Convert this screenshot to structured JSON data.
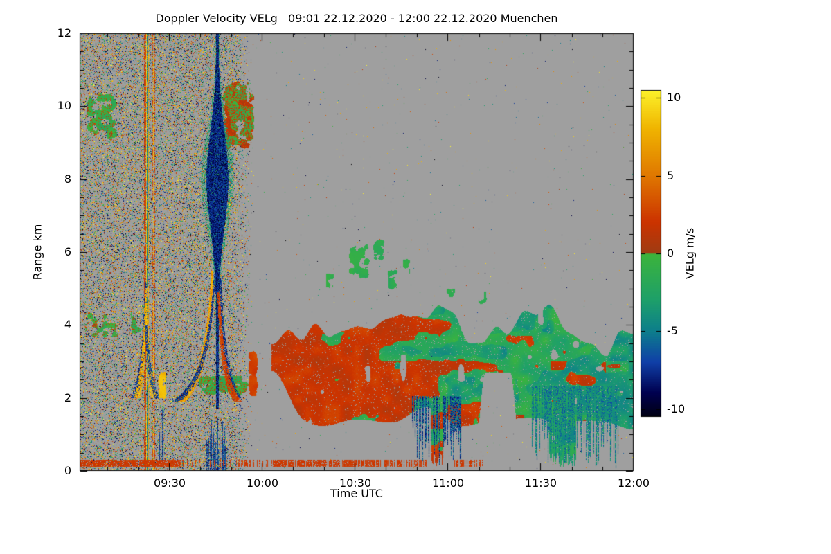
{
  "chart_data": {
    "type": "heatmap",
    "title": "Doppler Velocity VELg   09:01 22.12.2020 - 12:00 22.12.2020 Muenchen",
    "instrument_variable": "Doppler Velocity VELg",
    "time_start": "09:01 22.12.2020",
    "time_end": "12:00 22.12.2020",
    "station": "Muenchen",
    "xlabel": "Time UTC",
    "ylabel": "Range km",
    "x_ticks": [
      "09:30",
      "10:00",
      "10:30",
      "11:00",
      "11:30",
      "12:00"
    ],
    "x_tick_minutes": [
      29,
      59,
      89,
      119,
      149,
      179
    ],
    "x_minor_step_minutes": 10,
    "x_range_minutes": [
      0,
      179
    ],
    "y_ticks": [
      0,
      2,
      4,
      6,
      8,
      10,
      12
    ],
    "y_minor_step": 0.5,
    "y_range": [
      0,
      12
    ],
    "grid": false,
    "no_data_color": "#9f9f9f",
    "colorbar": {
      "label": "VELg m/s",
      "ticks": [
        10,
        5,
        0,
        -5,
        -10
      ],
      "range": [
        -10.5,
        10.5
      ],
      "stops": [
        {
          "v": -11,
          "color": "#000000"
        },
        {
          "v": -9,
          "color": "#00004f"
        },
        {
          "v": -7,
          "color": "#1040a8"
        },
        {
          "v": -5,
          "color": "#0d7f8c"
        },
        {
          "v": -3,
          "color": "#1ea06a"
        },
        {
          "v": -0.05,
          "color": "#3cb43c"
        },
        {
          "v": 0.05,
          "color": "#a03c14"
        },
        {
          "v": 2,
          "color": "#cc3300"
        },
        {
          "v": 5,
          "color": "#e07800"
        },
        {
          "v": 8,
          "color": "#f0b400"
        },
        {
          "v": 11,
          "color": "#ffff33"
        }
      ]
    },
    "features_note": "Procedural description of the velocity field regions visible in the plot; t in minutes after 09:01 UTC, r in km.",
    "features": [
      {
        "type": "speckle",
        "t": [
          0,
          55.5
        ],
        "density": 0.26,
        "fade_from": 49,
        "v": [
          -11,
          11
        ]
      },
      {
        "type": "speckle",
        "t": [
          55.5,
          179
        ],
        "density": 0.0025,
        "v": [
          -11,
          11
        ]
      },
      {
        "type": "blob",
        "t": [
          1,
          13.5
        ],
        "r": [
          8.95,
          10.55
        ],
        "cover": 0.6,
        "v": -1.0,
        "vn": 1.3,
        "warm_mix": 0.15
      },
      {
        "type": "blob",
        "t": [
          0,
          14
        ],
        "r": [
          3.55,
          4.45
        ],
        "cover": 0.5,
        "v": -1.0,
        "vn": 1.2,
        "warm_mix": 0.2
      },
      {
        "type": "blob",
        "t": [
          15.5,
          21.5
        ],
        "r": [
          3.6,
          4.7
        ],
        "cover": 0.45,
        "v": -0.9,
        "vn": 1.1,
        "warm_mix": 0.12
      },
      {
        "type": "blob",
        "t": [
          45.5,
          57
        ],
        "r": [
          8.7,
          10.8
        ],
        "cover": 0.75,
        "v": -0.4,
        "vn": 1.8,
        "warm_mix": 0.4
      },
      {
        "type": "band",
        "t": [
          36.5,
          56
        ],
        "r": [
          2.05,
          2.65
        ],
        "cover": 0.75,
        "v": -1.2,
        "vn": 1.0,
        "warm_mix": 0.2
      },
      {
        "type": "column",
        "tc": 21.4,
        "w": 1.3,
        "density": 0.8
      },
      {
        "type": "column",
        "tc": 23.8,
        "w": 0.7,
        "density": 0.55
      },
      {
        "type": "plume",
        "tc": 44.4,
        "r": [
          1.7,
          12
        ],
        "rc": 8.0,
        "wbase": 0.35,
        "wamp": 3.2,
        "wsig": 3.5,
        "v": -7.8,
        "vn": 1.6
      },
      {
        "type": "curve",
        "tc": 44.4,
        "k": -13.5,
        "r": [
          1.9,
          5.5
        ],
        "rref": 10.5,
        "wbase": 0.22,
        "wamp": 1.3,
        "wdecay": 1.3,
        "v": 7,
        "vn": 2.2,
        "cover": 0.85
      },
      {
        "type": "curve",
        "tc": 44.4,
        "k": -16.5,
        "r": [
          1.9,
          5.5
        ],
        "rref": 6.5,
        "wbase": 0.2,
        "wamp": 1.0,
        "wdecay": 1.2,
        "v": -7.5,
        "vn": 1.5,
        "cover": 0.75
      },
      {
        "type": "curve",
        "tc": 44.4,
        "k": 8.5,
        "r": [
          2.0,
          5.3
        ],
        "rref": 9.5,
        "wbase": 0.22,
        "wamp": 0.9,
        "wdecay": 1.4,
        "v": -7.5,
        "vn": 1.5,
        "cover": 0.75
      },
      {
        "type": "curve",
        "tc": 44.4,
        "k": 8.2,
        "r": [
          1.9,
          4.9
        ],
        "rref": 6.0,
        "wbase": 0.25,
        "wamp": 1.1,
        "wdecay": 1.2,
        "v": 2.4,
        "vn": 1.2,
        "cover": 0.85
      },
      {
        "type": "curve",
        "tc": 21.4,
        "k": -5.6,
        "r": [
          2.0,
          5.2
        ],
        "rref": 5.2,
        "wbase": 0.22,
        "wamp": 0.9,
        "wdecay": 1.3,
        "v": -7.5,
        "vn": 1.5,
        "cover": 0.75
      },
      {
        "type": "curve",
        "tc": 21.4,
        "k": -4.6,
        "r": [
          2.0,
          5.0
        ],
        "rref": 5.0,
        "wbase": 0.2,
        "wamp": 0.8,
        "wdecay": 1.3,
        "v": 7.5,
        "vn": 1.8,
        "cover": 0.75
      },
      {
        "type": "curve",
        "tc": 21.4,
        "k": 4.3,
        "r": [
          2.0,
          4.6
        ],
        "rref": 4.6,
        "wbase": 0.2,
        "wamp": 0.8,
        "wdecay": 1.3,
        "v": 8,
        "vn": 1.5,
        "cover": 0.7
      },
      {
        "type": "curve",
        "tc": 21.4,
        "k": 6.2,
        "r": [
          2.0,
          4.0
        ],
        "rref": 4.0,
        "wbase": 0.18,
        "wamp": 0.7,
        "wdecay": 1.2,
        "v": -7,
        "vn": 1.5,
        "cover": 0.65
      },
      {
        "type": "blob",
        "t": [
          25.2,
          27.8
        ],
        "r": [
          1.95,
          2.8
        ],
        "cover": 0.8,
        "v": 8,
        "vn": 1.6,
        "warm_mix": 0
      },
      {
        "type": "blob",
        "t": [
          54.3,
          57.6
        ],
        "r": [
          1.95,
          3.45
        ],
        "cover": 0.72,
        "v": 2.3,
        "vn": 1.0,
        "warm_mix": 0
      },
      {
        "type": "streaks",
        "t": [
          41,
          47.2
        ],
        "r": [
          0,
          1.45
        ],
        "density": 0.55,
        "v": -7,
        "vn": 2,
        "mode": "up"
      },
      {
        "type": "streaks",
        "t": [
          25.8,
          27.2
        ],
        "r": [
          0.3,
          1.9
        ],
        "density": 0.5,
        "v": -7,
        "vn": 1.5,
        "mode": "up"
      },
      {
        "type": "cloudfield",
        "t": [
          62,
          179
        ],
        "top_base": 4.05,
        "top_amp": 0.75,
        "bot_base": 1.5,
        "bot_amp": 0.45,
        "start_ramp": [
          62,
          73,
          2.75
        ],
        "bot_lift": [
          127,
          143,
          2.7
        ],
        "green_bias": [
          [
            62,
            -0.18
          ],
          [
            100,
            -0.05
          ],
          [
            125,
            0.12
          ],
          [
            132,
            0.38
          ],
          [
            179,
            0.46
          ]
        ],
        "v_warm": 1.8,
        "v_warm_n": 1.0,
        "v_green": -1.7,
        "v_green_n": 1.4,
        "hole_thr": 0.93,
        "downspike_thr": 0.78,
        "orange_bands": [
          [
            66,
            108,
            1.6,
            3.0
          ],
          [
            152,
            170,
            1.9,
            3.0
          ]
        ]
      },
      {
        "type": "blob",
        "t": [
          86,
          94.5
        ],
        "r": [
          5.15,
          6.35
        ],
        "cover": 0.55,
        "v": -1.4,
        "vn": 1.0,
        "warm_mix": 0
      },
      {
        "type": "blob",
        "t": [
          94,
          99
        ],
        "r": [
          5.7,
          6.45
        ],
        "cover": 0.5,
        "v": -1.3,
        "vn": 0.9,
        "warm_mix": 0
      },
      {
        "type": "blob",
        "t": [
          99,
          103
        ],
        "r": [
          4.9,
          5.6
        ],
        "cover": 0.5,
        "v": -1.5,
        "vn": 0.9,
        "warm_mix": 0
      },
      {
        "type": "blob",
        "t": [
          79,
          82.5
        ],
        "r": [
          4.95,
          5.5
        ],
        "cover": 0.45,
        "v": -1.2,
        "vn": 0.8,
        "warm_mix": 0
      },
      {
        "type": "blob",
        "t": [
          104,
          107
        ],
        "r": [
          5.3,
          5.95
        ],
        "cover": 0.4,
        "v": -1.3,
        "vn": 0.8,
        "warm_mix": 0
      },
      {
        "type": "blob",
        "t": [
          118,
          121.5
        ],
        "r": [
          4.7,
          5.15
        ],
        "cover": 0.45,
        "v": -1.4,
        "vn": 0.8,
        "warm_mix": 0
      },
      {
        "type": "blob",
        "t": [
          128,
          132
        ],
        "r": [
          4.5,
          5.0
        ],
        "cover": 0.4,
        "v": -1.5,
        "vn": 0.8,
        "warm_mix": 0
      },
      {
        "type": "streaks",
        "t": [
          107.5,
          123
        ],
        "r": [
          0.15,
          2.05
        ],
        "density": 0.6,
        "v": -6.5,
        "vn": 2.5,
        "mode": "down"
      },
      {
        "type": "streaks",
        "t": [
          146,
          174
        ],
        "r": [
          0.05,
          2.3
        ],
        "density": 0.68,
        "v": -4.5,
        "vn": 2.5,
        "mode": "down"
      },
      {
        "type": "layer",
        "r": [
          0.12,
          0.3
        ],
        "v": 2.2,
        "segments": [
          [
            0,
            33.5,
            0.95
          ],
          [
            33.5,
            62,
            0.3
          ],
          [
            62,
            97,
            0.85
          ],
          [
            97,
            112,
            0.5
          ],
          [
            121,
            130,
            0.55
          ]
        ]
      }
    ]
  }
}
